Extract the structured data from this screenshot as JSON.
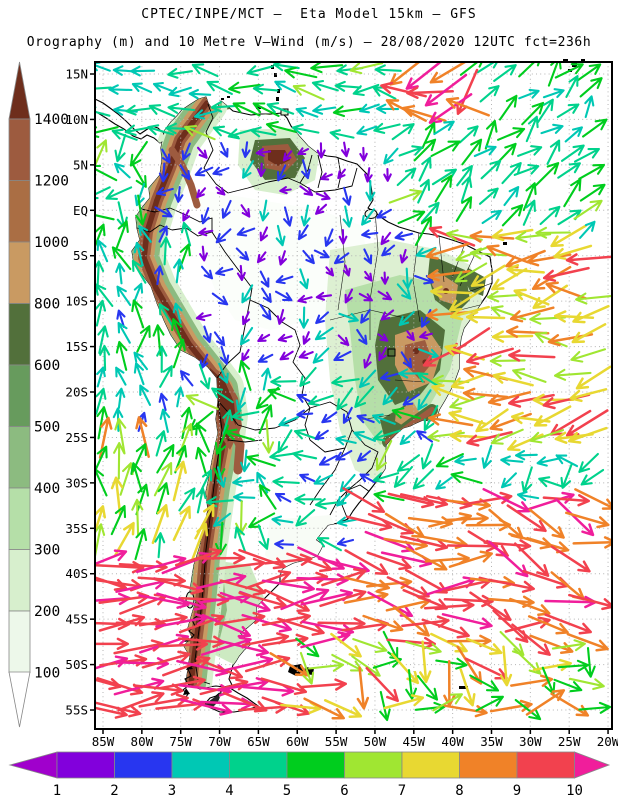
{
  "header": {
    "title": "CPTEC/INPE/MCT —  Eta Model 15km — GFS",
    "subtitle": "Orography (m) and 10 Metre V—Wind (m/s) — 28/08/2020 12UTC fct=236h"
  },
  "chart_data": {
    "type": "heatmap",
    "title": "CPTEC/INPE/MCT —  Eta Model 15km — GFS",
    "subtitle": "Orography (m) and 10 Metre V—Wind (m/s) — 28/08/2020 12UTC fct=236h",
    "meta": {
      "institution": "CPTEC/INPE/MCT",
      "model": "Eta Model 15km",
      "boundary_forcing": "GFS",
      "valid": "28/08/2020 12UTC",
      "forecast": "fct=236h",
      "fields": [
        "Orography (m)",
        "10 Metre V-Wind (m/s)"
      ]
    },
    "x_ticks": [
      "85W",
      "80W",
      "75W",
      "70W",
      "65W",
      "60W",
      "55W",
      "50W",
      "45W",
      "40W",
      "35W",
      "30W",
      "25W",
      "20W"
    ],
    "y_ticks": [
      "15N",
      "10N",
      "5N",
      "EQ",
      "5S",
      "10S",
      "15S",
      "20S",
      "25S",
      "30S",
      "35S",
      "40S",
      "45S",
      "50S",
      "55S"
    ],
    "grid": true,
    "orography_scale": {
      "units": "m",
      "tick_labels": [
        "1400",
        "1200",
        "1000",
        "800",
        "600",
        "500",
        "400",
        "300",
        "200",
        "100"
      ],
      "levels_m": [
        100,
        200,
        300,
        400,
        500,
        600,
        800,
        1000,
        1200,
        1400
      ],
      "colors_top_to_bottom": [
        "#9d5b3f",
        "#aa6e44",
        "#c99a62",
        "#52703b",
        "#679b5d",
        "#8cbb80",
        "#b5dfa8",
        "#d7efcd",
        "#edf8ea"
      ],
      "above_color": "#6e2e1c",
      "below_color": "#ffffff"
    },
    "wind_scale": {
      "units": "m/s",
      "tick_labels": [
        "1",
        "2",
        "3",
        "4",
        "5",
        "6",
        "7",
        "8",
        "9",
        "10"
      ],
      "levels_ms": [
        1,
        2,
        3,
        4,
        5,
        6,
        7,
        8,
        9,
        10
      ],
      "segment_colors": [
        "#8200dc",
        "#2836f0",
        "#00c8b4",
        "#00d28c",
        "#00cd1e",
        "#a0e632",
        "#e8d832",
        "#f08228",
        "#f2414e"
      ],
      "below_arrow_color": "#a000cc",
      "above_arrow_color": "#f01e9b"
    },
    "wind_field_zones": [
      {
        "name": "storm-cluster-north",
        "x": [
          392,
          470
        ],
        "y": [
          62,
          118
        ],
        "dir_deg_ccw_from_east": [
          150,
          265
        ],
        "speed_ms": [
          8.3,
          10.4
        ]
      },
      {
        "name": "trade-winds-north-atlantic",
        "x": [
          398,
          612
        ],
        "y": [
          62,
          232
        ],
        "dir_deg_ccw_from_east": [
          18,
          75
        ],
        "speed_ms": [
          3.4,
          6.4
        ]
      },
      {
        "name": "caribbean-easterlies",
        "x": [
          95,
          398
        ],
        "y": [
          62,
          136
        ],
        "dir_deg_ccw_from_east": [
          152,
          200
        ],
        "speed_ms": [
          3.2,
          6.2
        ]
      },
      {
        "name": "pacific-tropical",
        "x": [
          95,
          195
        ],
        "y": [
          232,
          422
        ],
        "dir_deg_ccw_from_east": [
          58,
          130
        ],
        "speed_ms": [
          2.4,
          5.6
        ]
      },
      {
        "name": "pacific-subtropical",
        "x": [
          95,
          216
        ],
        "y": [
          422,
          548
        ],
        "dir_deg_ccw_from_east": [
          55,
          115
        ],
        "speed_ms": [
          4.2,
          8.2
        ]
      },
      {
        "name": "amazon-weak-winds",
        "x": [
          148,
          442
        ],
        "y": [
          136,
          362
        ],
        "dir_deg_ccw_from_east": [
          185,
          345
        ],
        "speed_ms": [
          1.0,
          3.4
        ]
      },
      {
        "name": "trade-winds-south-atlantic",
        "x": [
          438,
          612
        ],
        "y": [
          232,
          452
        ],
        "dir_deg_ccw_from_east": [
          158,
          215
        ],
        "speed_ms": [
          6.4,
          9.6
        ]
      },
      {
        "name": "atlantic-transition",
        "x": [
          368,
          612
        ],
        "y": [
          452,
          498
        ],
        "dir_deg_ccw_from_east": [
          150,
          255
        ],
        "speed_ms": [
          3.0,
          6.2
        ]
      },
      {
        "name": "atlantic-storm-track",
        "x": [
          358,
          612
        ],
        "y": [
          498,
          642
        ],
        "dir_deg_ccw_from_east": [
          -45,
          18
        ],
        "speed_ms": [
          8.0,
          10.5
        ]
      },
      {
        "name": "south-atlantic-meridional",
        "x": [
          288,
          612
        ],
        "y": [
          642,
          729
        ],
        "dir_deg_ccw_from_east": [
          -95,
          35
        ],
        "speed_ms": [
          5.0,
          9.3
        ]
      },
      {
        "name": "southern-ocean-westerlies",
        "x": [
          95,
          358
        ],
        "y": [
          548,
          729
        ],
        "dir_deg_ccw_from_east": [
          -25,
          22
        ],
        "speed_ms": [
          9.0,
          10.6
        ]
      },
      {
        "name": "brazil-interior",
        "x": [
          278,
          452
        ],
        "y": [
          362,
          545
        ],
        "dir_deg_ccw_from_east": [
          140,
          245
        ],
        "speed_ms": [
          2.0,
          5.2
        ]
      }
    ],
    "wind_field_default": {
      "dir_deg_ccw_from_east": [
        60,
        300
      ],
      "speed_ms": [
        3.0,
        6.5
      ]
    }
  }
}
